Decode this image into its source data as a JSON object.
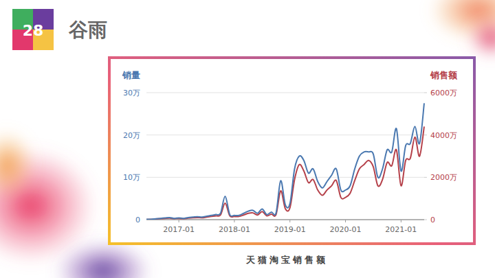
{
  "slide": {
    "number": 28,
    "heading": "谷雨"
  },
  "chart_data": {
    "type": "line",
    "title": "天猫淘宝销售额",
    "y_label": "销量",
    "y2_label": "销售额",
    "x": [
      "2016-06",
      "2016-07",
      "2016-08",
      "2016-09",
      "2016-10",
      "2016-11",
      "2016-12",
      "2017-01",
      "2017-02",
      "2017-03",
      "2017-04",
      "2017-05",
      "2017-06",
      "2017-07",
      "2017-08",
      "2017-09",
      "2017-10",
      "2017-11",
      "2017-12",
      "2018-01",
      "2018-02",
      "2018-03",
      "2018-04",
      "2018-05",
      "2018-06",
      "2018-07",
      "2018-08",
      "2018-09",
      "2018-10",
      "2018-11",
      "2018-12",
      "2019-01",
      "2019-02",
      "2019-03",
      "2019-04",
      "2019-05",
      "2019-06",
      "2019-07",
      "2019-08",
      "2019-09",
      "2019-10",
      "2019-11",
      "2019-12",
      "2020-01",
      "2020-02",
      "2020-03",
      "2020-04",
      "2020-05",
      "2020-06",
      "2020-07",
      "2020-08",
      "2020-09",
      "2020-10",
      "2020-11",
      "2020-12",
      "2021-01",
      "2021-02",
      "2021-03",
      "2021-04",
      "2021-05",
      "2021-06"
    ],
    "xlim": [
      "2016-06",
      "2021-06"
    ],
    "xticks": [
      "2017-01",
      "2018-01",
      "2019-01",
      "2020-01",
      "2021-01"
    ],
    "ylim": [
      0,
      300000
    ],
    "yticks": [
      0,
      {
        "value": 100000,
        "label": "10万"
      },
      {
        "value": 200000,
        "label": "20万"
      },
      {
        "value": 300000,
        "label": "30万"
      }
    ],
    "y2lim": [
      0,
      60000000
    ],
    "y2ticks": [
      0,
      {
        "value": 20000000,
        "label": "2000万"
      },
      {
        "value": 40000000,
        "label": "4000万"
      },
      {
        "value": 60000000,
        "label": "6000万"
      }
    ],
    "grid": true,
    "series": [
      {
        "color": "#4a78b0",
        "values": [
          1000,
          1000,
          2000,
          3000,
          4000,
          5000,
          3000,
          4000,
          3000,
          5000,
          6000,
          7000,
          6000,
          8000,
          10000,
          12000,
          15000,
          55000,
          12000,
          10000,
          10000,
          15000,
          20000,
          22000,
          15000,
          25000,
          12000,
          18000,
          16000,
          92000,
          35000,
          38000,
          120000,
          150000,
          140000,
          110000,
          120000,
          90000,
          75000,
          90000,
          105000,
          120000,
          70000,
          70000,
          80000,
          120000,
          150000,
          160000,
          160000,
          155000,
          100000,
          120000,
          165000,
          160000,
          215000,
          115000,
          175000,
          180000,
          220000,
          180000,
          275000
        ]
      },
      {
        "color": "#b5414a",
        "axis": "y2",
        "values": [
          100000,
          150000,
          300000,
          450000,
          600000,
          700000,
          500000,
          600000,
          450000,
          700000,
          900000,
          1000000,
          900000,
          1200000,
          1500000,
          1800000,
          2200000,
          7800000,
          1800000,
          1500000,
          1500000,
          2200000,
          3000000,
          3200000,
          2200000,
          3800000,
          1800000,
          2600000,
          2400000,
          13600000,
          5200000,
          5600000,
          19000000,
          26000000,
          23000000,
          17500000,
          19000000,
          14000000,
          11500000,
          14000000,
          16000000,
          18500000,
          10500000,
          10500000,
          12500000,
          18500000,
          24000000,
          26000000,
          28000000,
          25000000,
          16000000,
          19000000,
          27000000,
          25500000,
          33000000,
          16000000,
          28000000,
          29000000,
          39000000,
          30000000,
          44000000
        ]
      }
    ]
  }
}
